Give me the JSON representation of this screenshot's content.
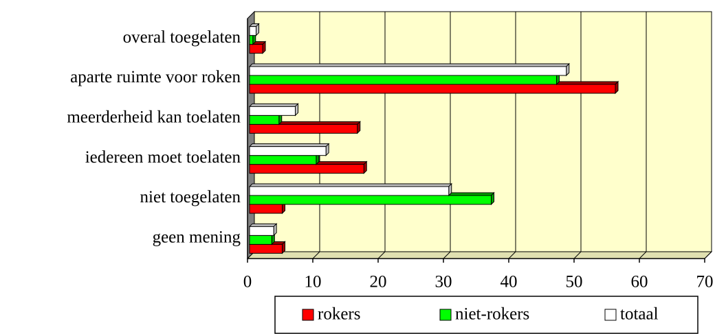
{
  "chart_data": {
    "type": "bar",
    "orientation": "horizontal",
    "categories": [
      "overal toegelaten",
      "aparte ruimte voor roken",
      "meerderheid kan toelaten",
      "iedereen moet toelaten",
      "niet toegelaten",
      "geen mening"
    ],
    "series": [
      {
        "name": "rokers",
        "color": "#ff0000",
        "values": [
          2,
          56,
          16.5,
          17.5,
          5,
          5
        ]
      },
      {
        "name": "niet-rokers",
        "color": "#00ff00",
        "values": [
          0.5,
          47,
          4.5,
          10.2,
          37,
          3.4
        ]
      },
      {
        "name": "totaal",
        "color": "#ffffff",
        "values": [
          1,
          48.5,
          7,
          11.7,
          30.5,
          3.7
        ]
      }
    ],
    "xlim": [
      0,
      70
    ],
    "xticks": [
      0,
      10,
      20,
      30,
      40,
      50,
      60,
      70
    ],
    "grid": true,
    "legend": "bottom"
  }
}
